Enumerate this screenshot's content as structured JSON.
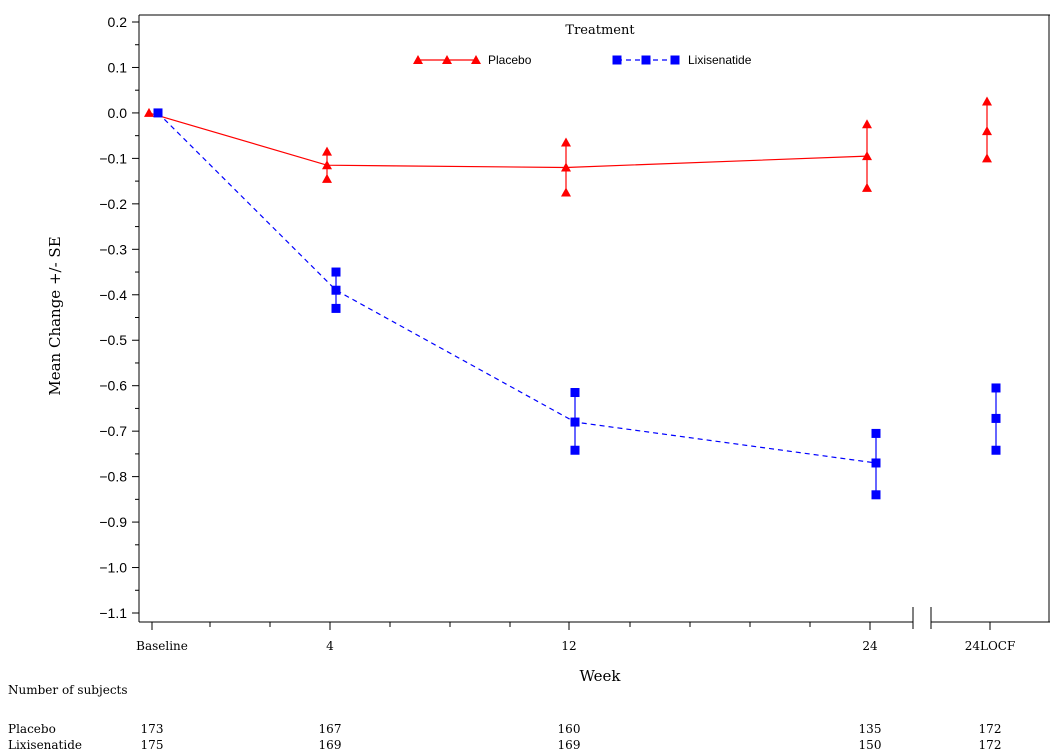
{
  "chart_data": {
    "type": "line",
    "ylabel": "Mean Change +/- SE",
    "xlabel": "Week",
    "ylim": [
      -1.1,
      0.2
    ],
    "yticks": [
      0.2,
      0.1,
      0.0,
      -0.1,
      -0.2,
      -0.3,
      -0.4,
      -0.5,
      -0.6,
      -0.7,
      -0.8,
      -0.9,
      -1.0,
      -1.1
    ],
    "ytick_labels": [
      "0.2",
      "0.1",
      "0.0",
      "−0.1",
      "−0.2",
      "−0.3",
      "−0.4",
      "−0.5",
      "−0.6",
      "−0.7",
      "−0.8",
      "−0.9",
      "−1.0",
      "−1.1"
    ],
    "categories": [
      "Baseline",
      "4",
      "12",
      "24",
      "24LOCF"
    ],
    "axis_break": "between 24 and 24LOCF",
    "grid": false,
    "legend": {
      "title": "Treatment",
      "position": "top-center",
      "entries": [
        "Placebo",
        "Lixisenatide"
      ]
    },
    "series": [
      {
        "name": "Placebo",
        "color": "#ff0000",
        "marker": "triangle",
        "line_style": "solid",
        "mean": [
          0.0,
          -0.115,
          -0.12,
          -0.095,
          -0.04
        ],
        "upper": [
          0.0,
          -0.085,
          -0.065,
          -0.025,
          0.025
        ],
        "lower": [
          0.0,
          -0.145,
          -0.175,
          -0.165,
          -0.1
        ],
        "n": [
          "173",
          "167",
          "160",
          "135",
          "172"
        ]
      },
      {
        "name": "Lixisenatide",
        "color": "#0000ff",
        "marker": "square",
        "line_style": "dashed",
        "mean": [
          0.0,
          -0.39,
          -0.68,
          -0.77,
          -0.672
        ],
        "upper": [
          0.0,
          -0.35,
          -0.615,
          -0.705,
          -0.605
        ],
        "lower": [
          0.0,
          -0.43,
          -0.742,
          -0.84,
          -0.742
        ],
        "n": [
          "175",
          "169",
          "169",
          "150",
          "172"
        ]
      }
    ],
    "subjects_table": {
      "title": "Number of subjects"
    }
  }
}
